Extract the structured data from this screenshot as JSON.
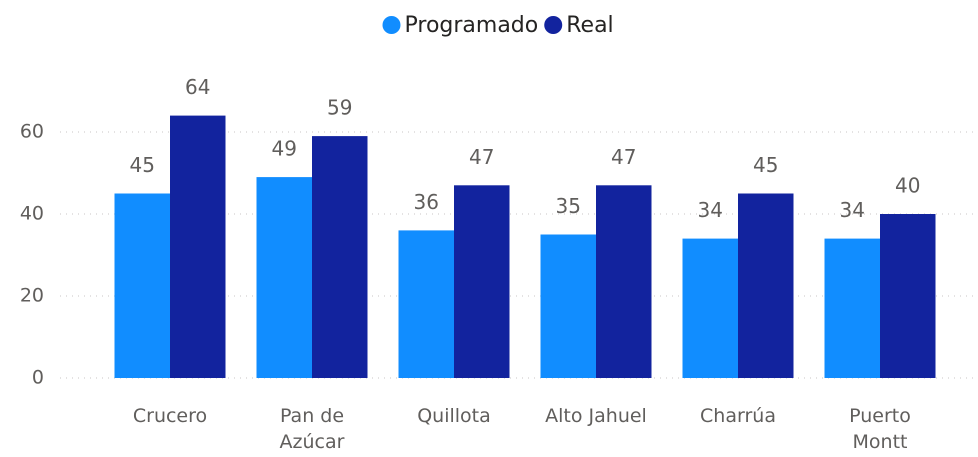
{
  "chart_data": {
    "type": "bar",
    "categories": [
      "Crucero",
      "Pan de\nAzúcar",
      "Quillota",
      "Alto Jahuel",
      "Charrúa",
      "Puerto\nMontt"
    ],
    "series": [
      {
        "name": "Programado",
        "color": "#118dff",
        "values": [
          45,
          49,
          36,
          35,
          34,
          34
        ]
      },
      {
        "name": "Real",
        "color": "#12239e",
        "values": [
          64,
          59,
          47,
          47,
          45,
          40
        ]
      }
    ],
    "ylim": [
      0,
      70
    ],
    "yticks": [
      0,
      20,
      40,
      60
    ],
    "grid": true,
    "legend": "top"
  }
}
